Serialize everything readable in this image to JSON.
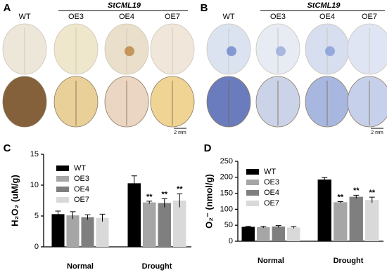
{
  "photo_panels": [
    {
      "label": "A",
      "group": "StCML19",
      "columns": [
        "WT",
        "OE3",
        "OE4",
        "OE7"
      ],
      "scale_bar": "2 mm"
    },
    {
      "label": "B",
      "group": "StCML19",
      "columns": [
        "WT",
        "OE3",
        "OE4",
        "OE7"
      ],
      "scale_bar": "2 mm"
    }
  ],
  "chart_data": [
    {
      "type": "bar",
      "panel": "C",
      "y_label": "H₂O₂ (uM/g)",
      "categories": [
        "Normal",
        "Drought"
      ],
      "ylim": [
        0,
        15
      ],
      "yticks": [
        0,
        5,
        10,
        15
      ],
      "series": [
        {
          "name": "WT",
          "color": "#000000",
          "values": [
            5.3,
            10.3
          ],
          "errors": [
            0.5,
            1.2
          ],
          "labels": [
            null,
            null
          ]
        },
        {
          "name": "OE3",
          "color": "#a6a6a6",
          "values": [
            5.1,
            7.2
          ],
          "errors": [
            0.6,
            0.2
          ],
          "labels": [
            null,
            "**"
          ]
        },
        {
          "name": "OE4",
          "color": "#7f7f7f",
          "values": [
            4.8,
            7.1
          ],
          "errors": [
            0.4,
            0.7
          ],
          "labels": [
            null,
            "**"
          ]
        },
        {
          "name": "OE7",
          "color": "#d9d9d9",
          "values": [
            4.7,
            7.5
          ],
          "errors": [
            0.6,
            1.1
          ],
          "labels": [
            null,
            "**"
          ]
        }
      ]
    },
    {
      "type": "bar",
      "panel": "D",
      "y_label": "O₂⁻ (nmol/g)",
      "categories": [
        "Normal",
        "Drought"
      ],
      "ylim": [
        0,
        250
      ],
      "yticks": [
        0,
        50,
        100,
        150,
        200,
        250
      ],
      "series": [
        {
          "name": "WT",
          "color": "#000000",
          "values": [
            45,
            193
          ],
          "errors": [
            2,
            6
          ],
          "labels": [
            null,
            null
          ]
        },
        {
          "name": "OE3",
          "color": "#a6a6a6",
          "values": [
            44,
            122
          ],
          "errors": [
            3,
            2
          ],
          "labels": [
            null,
            "**"
          ]
        },
        {
          "name": "OE4",
          "color": "#7f7f7f",
          "values": [
            46,
            139
          ],
          "errors": [
            3,
            5
          ],
          "labels": [
            null,
            "**"
          ]
        },
        {
          "name": "OE7",
          "color": "#d9d9d9",
          "values": [
            43,
            129
          ],
          "errors": [
            3,
            9
          ],
          "labels": [
            null,
            "**"
          ]
        }
      ]
    }
  ]
}
